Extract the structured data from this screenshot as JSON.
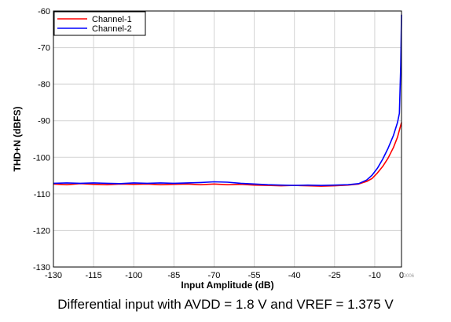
{
  "chart_data": {
    "type": "line",
    "title": "",
    "xlabel": "Input Amplitude (dB)",
    "ylabel": "THD+N (dBFS)",
    "xlim": [
      -130,
      0
    ],
    "ylim": [
      -130,
      -60
    ],
    "xticks": [
      -130,
      -115,
      -100,
      -85,
      -70,
      -55,
      -40,
      -25,
      -10,
      0
    ],
    "yticks": [
      -60,
      -70,
      -80,
      -90,
      -100,
      -110,
      -120,
      -130
    ],
    "grid": true,
    "legend": "top-left",
    "series": [
      {
        "name": "Channel-1",
        "color": "#ff0000",
        "x": [
          -130,
          -125,
          -120,
          -115,
          -110,
          -105,
          -100,
          -95,
          -90,
          -85,
          -80,
          -75,
          -70,
          -65,
          -60,
          -55,
          -50,
          -45,
          -40,
          -35,
          -30,
          -25,
          -20,
          -16,
          -13,
          -11,
          -9,
          -7,
          -5,
          -3,
          -1.5,
          -0.5,
          0
        ],
        "y": [
          -107.3,
          -107.5,
          -107.2,
          -107.4,
          -107.5,
          -107.3,
          -107.4,
          -107.3,
          -107.5,
          -107.4,
          -107.3,
          -107.5,
          -107.3,
          -107.5,
          -107.4,
          -107.6,
          -107.7,
          -107.8,
          -107.7,
          -107.8,
          -107.9,
          -107.8,
          -107.6,
          -107.3,
          -106.6,
          -105.8,
          -104.3,
          -102.5,
          -100.2,
          -97.3,
          -94.5,
          -91.8,
          -90.5
        ]
      },
      {
        "name": "Channel-2",
        "color": "#0000ff",
        "x": [
          -130,
          -125,
          -120,
          -115,
          -110,
          -105,
          -100,
          -95,
          -90,
          -85,
          -80,
          -75,
          -70,
          -65,
          -60,
          -55,
          -50,
          -45,
          -40,
          -35,
          -30,
          -25,
          -20,
          -16,
          -13,
          -11,
          -9,
          -7,
          -5,
          -3,
          -1.5,
          -0.8,
          -0.3,
          0
        ],
        "y": [
          -107.1,
          -107.0,
          -107.1,
          -107.0,
          -107.1,
          -107.2,
          -107.0,
          -107.1,
          -107.0,
          -107.1,
          -107.0,
          -106.9,
          -106.7,
          -106.8,
          -107.1,
          -107.3,
          -107.5,
          -107.6,
          -107.7,
          -107.6,
          -107.7,
          -107.6,
          -107.5,
          -107.2,
          -106.2,
          -104.9,
          -103.0,
          -100.5,
          -97.5,
          -94.0,
          -90.5,
          -88.0,
          -75.0,
          -61.0
        ]
      }
    ],
    "watermark": "D006"
  },
  "caption": "Differential input with AVDD = 1.8 V and VREF = 1.375 V"
}
